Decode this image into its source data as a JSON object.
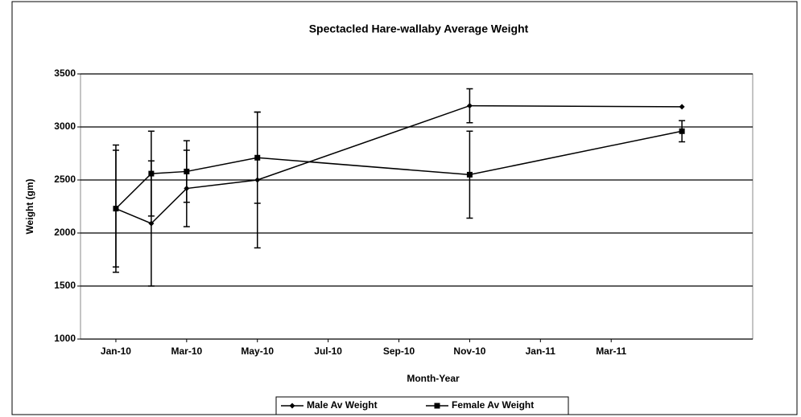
{
  "chart_data": {
    "type": "line",
    "title": "Spectacled Hare-wallaby Average Weight",
    "x_label": "Month-Year",
    "y_label": "Weight (gm)",
    "x": [
      "2010-01",
      "2010-02",
      "2010-03",
      "2010-05",
      "2010-11",
      "2011-05"
    ],
    "series": [
      {
        "name": "Male Av Weight",
        "color": "#000000",
        "marker": "diamond",
        "values": [
          2230,
          2090,
          2420,
          2500,
          3200,
          3190
        ],
        "errors": [
          600,
          590,
          360,
          640,
          160,
          null
        ]
      },
      {
        "name": "Female Av Weight",
        "color": "#000000",
        "marker": "square",
        "values": [
          2230,
          2560,
          2580,
          2710,
          2550,
          2960
        ],
        "errors": [
          550,
          400,
          290,
          430,
          410,
          100
        ]
      }
    ],
    "xlim": [
      "2009-12",
      "2011-07"
    ],
    "xticks": [
      {
        "value": "2010-01",
        "label": "Jan-10"
      },
      {
        "value": "2010-03",
        "label": "Mar-10"
      },
      {
        "value": "2010-05",
        "label": "May-10"
      },
      {
        "value": "2010-07",
        "label": "Jul-10"
      },
      {
        "value": "2010-09",
        "label": "Sep-10"
      },
      {
        "value": "2010-11",
        "label": "Nov-10"
      },
      {
        "value": "2011-01",
        "label": "Jan-11"
      },
      {
        "value": "2011-03",
        "label": "Mar-11"
      }
    ],
    "ylim": [
      1000,
      3500
    ],
    "yticks": [
      1000,
      1500,
      2000,
      2500,
      3000,
      3500
    ],
    "grid": true,
    "legend": "bottom"
  }
}
